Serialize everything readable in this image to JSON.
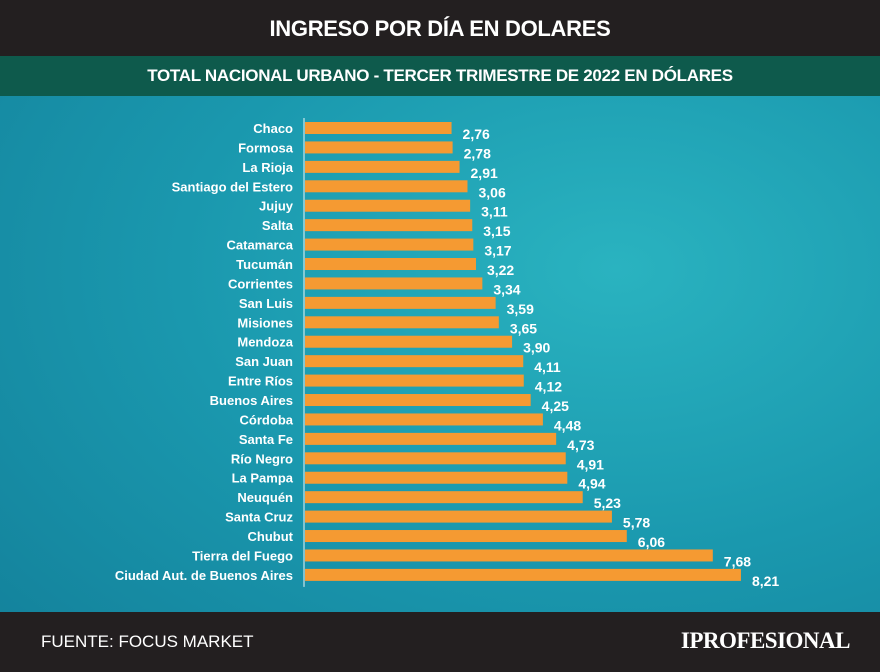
{
  "header": {
    "title": "INGRESO POR DÍA EN DOLARES",
    "subtitle": "TOTAL NACIONAL URBANO - TERCER TRIMESTRE DE 2022 EN DÓLARES"
  },
  "footer": {
    "source": "FUENTE: FOCUS MARKET",
    "logo": "IPROFESIONAL"
  },
  "colors": {
    "bar": "#f59a32",
    "text": "#ffffff"
  },
  "chart_data": {
    "type": "bar",
    "orientation": "horizontal",
    "title": "INGRESO POR DÍA EN DOLARES",
    "subtitle": "TOTAL NACIONAL URBANO - TERCER TRIMESTRE DE 2022 EN DÓLARES",
    "xlabel": "",
    "ylabel": "",
    "xlim": [
      0,
      8.5
    ],
    "grid": false,
    "categories": [
      "Chaco",
      "Formosa",
      "La Rioja",
      "Santiago del Estero",
      "Jujuy",
      "Salta",
      "Catamarca",
      "Tucumán",
      "Corrientes",
      "San Luis",
      "Misiones",
      "Mendoza",
      "San Juan",
      "Entre Ríos",
      "Buenos Aires",
      "Córdoba",
      "Santa Fe",
      "Río Negro",
      "La Pampa",
      "Neuquén",
      "Santa Cruz",
      "Chubut",
      "Tierra del Fuego",
      "Ciudad Aut. de Buenos Aires"
    ],
    "values": [
      2.76,
      2.78,
      2.91,
      3.06,
      3.11,
      3.15,
      3.17,
      3.22,
      3.34,
      3.59,
      3.65,
      3.9,
      4.11,
      4.12,
      4.25,
      4.48,
      4.73,
      4.91,
      4.94,
      5.23,
      5.78,
      6.06,
      7.68,
      8.21
    ],
    "value_labels": [
      "2,76",
      "2,78",
      "2,91",
      "3,06",
      "3,11",
      "3,15",
      "3,17",
      "3,22",
      "3,34",
      "3,59",
      "3,65",
      "3,90",
      "4,11",
      "4,12",
      "4,25",
      "4,48",
      "4,73",
      "4,91",
      "4,94",
      "5,23",
      "5,78",
      "6,06",
      "7,68",
      "8,21"
    ]
  }
}
